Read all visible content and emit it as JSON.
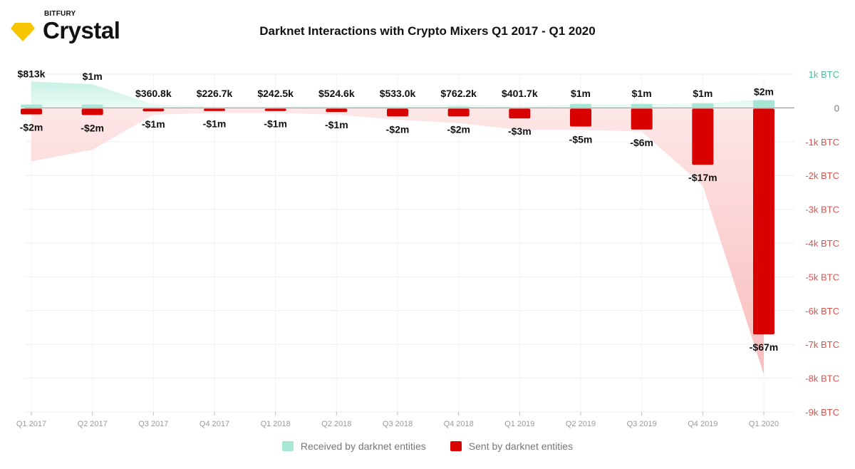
{
  "brand": {
    "company": "BITFURY",
    "product": "Crystal",
    "logo_color": "#f7c400"
  },
  "chart_data": {
    "type": "bar",
    "title": "Darknet Interactions with Crypto Mixers Q1 2017 - Q1 2020",
    "categories": [
      "Q1 2017",
      "Q2 2017",
      "Q3 2017",
      "Q4 2017",
      "Q1 2018",
      "Q2 2018",
      "Q3 2018",
      "Q4 2018",
      "Q1 2019",
      "Q2 2019",
      "Q3 2019",
      "Q4 2019",
      "Q1 2020"
    ],
    "ylim": [
      -9000,
      1000
    ],
    "yticks": [
      1000,
      0,
      -1000,
      -2000,
      -3000,
      -4000,
      -5000,
      -6000,
      -7000,
      -8000,
      -9000
    ],
    "ytick_labels": [
      "1k BTC",
      "0",
      "-1k BTC",
      "-2k BTC",
      "-3k BTC",
      "-4k BTC",
      "-5k BTC",
      "-6k BTC",
      "-7k BTC",
      "-8k BTC",
      "-9k BTC"
    ],
    "grid": true,
    "legend_position": "bottom",
    "series": [
      {
        "name": "Received by darknet entities",
        "color": "#a8e6d6",
        "values_btc": [
          100,
          100,
          15,
          10,
          10,
          15,
          20,
          40,
          10,
          120,
          120,
          140,
          230
        ],
        "area_btc": [
          780,
          700,
          100,
          50,
          50,
          60,
          80,
          100,
          60,
          100,
          110,
          130,
          250
        ],
        "labels_usd": [
          "$813k",
          "$1m",
          "$360.8k",
          "$226.7k",
          "$242.5k",
          "$524.6k",
          "$533.0k",
          "$762.2k",
          "$401.7k",
          "$1m",
          "$1m",
          "$1m",
          "$2m"
        ]
      },
      {
        "name": "Sent by darknet entities",
        "color": "#d90000",
        "values_btc": [
          -170,
          -190,
          -80,
          -70,
          -70,
          -100,
          -230,
          -230,
          -290,
          -530,
          -620,
          -1660,
          -6680
        ],
        "area_btc": [
          -1580,
          -1240,
          -200,
          -150,
          -150,
          -200,
          -350,
          -450,
          -650,
          -650,
          -700,
          -2300,
          -7880
        ],
        "labels_usd": [
          "-$2m",
          "-$2m",
          "-$1m",
          "-$1m",
          "-$1m",
          "-$1m",
          "-$2m",
          "-$2m",
          "-$3m",
          "-$5m",
          "-$6m",
          "-$17m",
          "-$67m"
        ]
      }
    ]
  }
}
